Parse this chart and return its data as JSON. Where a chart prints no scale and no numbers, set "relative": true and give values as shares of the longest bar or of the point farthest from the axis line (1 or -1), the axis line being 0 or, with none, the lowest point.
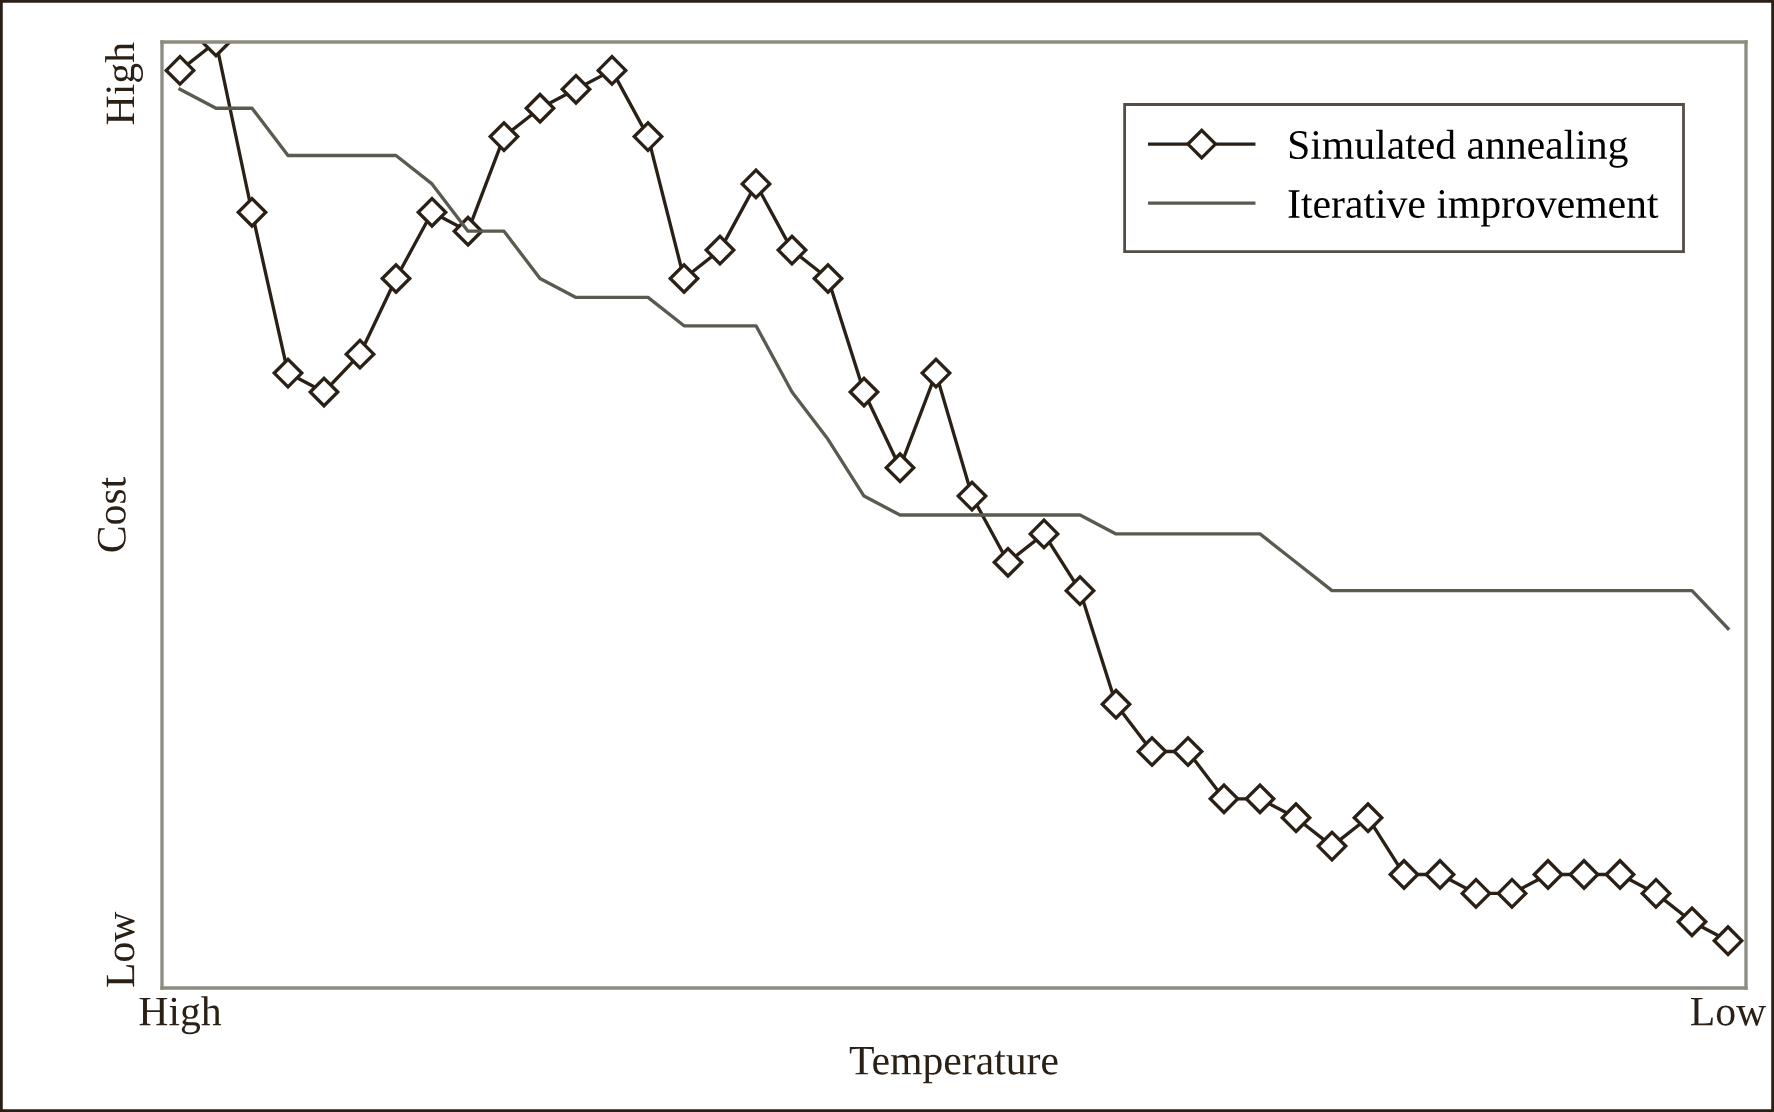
{
  "chart_data": {
    "type": "line",
    "xlabel": "Temperature",
    "ylabel": "Cost",
    "categories": [
      "High",
      null,
      null,
      null,
      null,
      null,
      null,
      null,
      null,
      null,
      null,
      null,
      null,
      null,
      null,
      null,
      null,
      null,
      null,
      null,
      null,
      null,
      null,
      null,
      null,
      null,
      null,
      null,
      null,
      null,
      null,
      null,
      null,
      null,
      null,
      null,
      null,
      null,
      null,
      null,
      null,
      null,
      null,
      "Low"
    ],
    "relative": true,
    "annotations": [
      "High",
      "Low"
    ],
    "legend": "top right",
    "series": [
      {
        "name": "Simulated annealing",
        "color": "#2b2016",
        "marker": "diamond",
        "values": [
          0.97,
          1.0,
          0.82,
          0.65,
          0.63,
          0.67,
          0.75,
          0.82,
          0.8,
          0.9,
          0.93,
          0.95,
          0.97,
          0.9,
          0.75,
          0.78,
          0.85,
          0.78,
          0.75,
          0.63,
          0.55,
          0.65,
          0.52,
          0.45,
          0.48,
          0.42,
          0.3,
          0.25,
          0.25,
          0.2,
          0.2,
          0.18,
          0.15,
          0.18,
          0.12,
          0.12,
          0.1,
          0.1,
          0.12,
          0.12,
          0.12,
          0.1,
          0.07,
          0.05
        ]
      },
      {
        "name": "Iterative improvement",
        "color": "#5a5a50",
        "marker": "none",
        "values": [
          0.95,
          0.93,
          0.93,
          0.88,
          0.88,
          0.88,
          0.88,
          0.85,
          0.8,
          0.8,
          0.75,
          0.73,
          0.73,
          0.73,
          0.7,
          0.7,
          0.7,
          0.63,
          0.58,
          0.52,
          0.5,
          0.5,
          0.5,
          0.5,
          0.5,
          0.5,
          0.48,
          0.48,
          0.48,
          0.48,
          0.48,
          0.45,
          0.42,
          0.42,
          0.42,
          0.42,
          0.42,
          0.42,
          0.42,
          0.42,
          0.42,
          0.42,
          0.42,
          0.38
        ]
      }
    ]
  }
}
